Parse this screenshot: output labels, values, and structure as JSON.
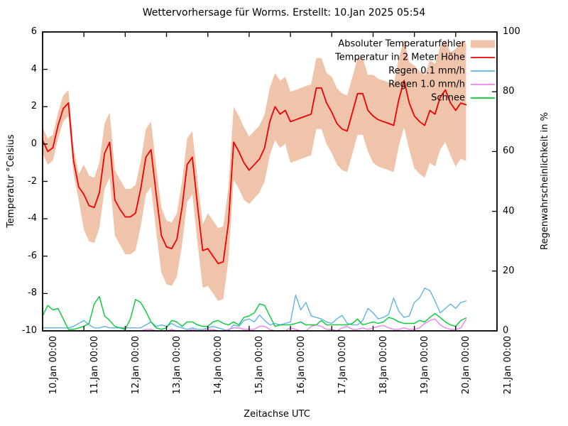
{
  "title": "Wettervorhersage für Worms. Erstellt: 10.Jan 2025 05:54",
  "axes": {
    "x_label": "Zeitachse UTC",
    "y_left_label": "Temperatur °Celsius",
    "y_right_label": "Regenwahrscheinlichkeit in %",
    "x_ticks": [
      "10.Jan 00:00",
      "11.Jan 00:00",
      "12.Jan 00:00",
      "13.Jan 00:00",
      "14.Jan 00:00",
      "15.Jan 00:00",
      "16.Jan 00:00",
      "17.Jan 00:00",
      "18.Jan 00:00",
      "19.Jan 00:00",
      "20.Jan 00:00",
      "21.Jan 00:00"
    ],
    "x_tick_positions_days": [
      0,
      1,
      2,
      3,
      4,
      5,
      6,
      7,
      8,
      9,
      10,
      11
    ],
    "y_left_ticks": [
      -10,
      -8,
      -6,
      -4,
      -2,
      0,
      2,
      4,
      6
    ],
    "y_right_ticks": [
      0,
      20,
      40,
      60,
      80,
      100
    ],
    "y_left_range": [
      -10,
      6
    ],
    "y_right_range": [
      0,
      100
    ],
    "x_range_days": [
      0,
      11
    ],
    "grid": "off"
  },
  "legend": {
    "position": "top-right-inside",
    "entries": [
      {
        "label": "Absoluter Temperaturfehler",
        "type": "band",
        "color": "#f0c4ab"
      },
      {
        "label": "Temperatur in 2 Meter Höhe",
        "type": "line",
        "color": "#ee0000"
      },
      {
        "label": "Regen 0.1 mm/h",
        "type": "line",
        "color": "#62b2e4"
      },
      {
        "label": "Regen 1.0 mm/h",
        "type": "line",
        "color": "#ee82ee"
      },
      {
        "label": "Schnee",
        "type": "line",
        "color": "#00cc33"
      }
    ]
  },
  "chart_data": {
    "type": "line",
    "title": "Wettervorhersage für Worms. Erstellt: 10.Jan 2025 05:54",
    "xlabel": "Zeitachse UTC",
    "ylabel_left": "Temperatur °Celsius",
    "ylabel_right": "Regenwahrscheinlichkeit in %",
    "x_unit": "days since 10.Jan 2025 00:00 UTC, 3-hour steps",
    "x": [
      0,
      0.125,
      0.25,
      0.375,
      0.5,
      0.625,
      0.75,
      0.875,
      1,
      1.125,
      1.25,
      1.375,
      1.5,
      1.625,
      1.75,
      1.875,
      2,
      2.125,
      2.25,
      2.375,
      2.5,
      2.625,
      2.75,
      2.875,
      3,
      3.125,
      3.25,
      3.375,
      3.5,
      3.625,
      3.75,
      3.875,
      4,
      4.125,
      4.25,
      4.375,
      4.5,
      4.625,
      4.75,
      4.875,
      5,
      5.125,
      5.25,
      5.375,
      5.5,
      5.625,
      5.75,
      5.875,
      6,
      6.125,
      6.25,
      6.375,
      6.5,
      6.625,
      6.75,
      6.875,
      7,
      7.125,
      7.25,
      7.375,
      7.5,
      7.625,
      7.75,
      7.875,
      8,
      8.125,
      8.25,
      8.375,
      8.5,
      8.625,
      8.75,
      8.875,
      9,
      9.125,
      9.25,
      9.375,
      9.5,
      9.625,
      9.75,
      9.875,
      10,
      10.125,
      10.25
    ],
    "series": [
      {
        "name": "Temperatur in 2 Meter Höhe",
        "axis": "left",
        "unit": "°C",
        "color": "#ee0000",
        "values": [
          0.2,
          -0.4,
          -0.2,
          1,
          1.9,
          2.2,
          -0.9,
          -2.3,
          -2.7,
          -3.3,
          -3.4,
          -2.6,
          -0.5,
          0.1,
          -3,
          -3.5,
          -3.9,
          -3.9,
          -3.7,
          -2.4,
          -0.7,
          -0.3,
          -2.7,
          -4.9,
          -5.5,
          -5.6,
          -5.1,
          -3.4,
          -1.1,
          -0.7,
          -3.3,
          -5.7,
          -5.6,
          -6,
          -6.4,
          -6.3,
          -4.2,
          0.1,
          -0.4,
          -1,
          -1.4,
          -1.1,
          -0.8,
          -0.2,
          1.2,
          2,
          1.6,
          1.8,
          1.2,
          1.3,
          1.4,
          1.5,
          1.6,
          3,
          3,
          2.2,
          1.7,
          1.1,
          0.8,
          0.7,
          1.7,
          2.7,
          2.7,
          1.8,
          1.5,
          1.3,
          1.2,
          1.1,
          1,
          2.4,
          3.4,
          2.2,
          1.5,
          1.2,
          1,
          1.8,
          1.6,
          2.5,
          2.9,
          2.2,
          1.8,
          2.2,
          2.1
        ]
      },
      {
        "name": "Absoluter Temperaturfehler (obere Grenze)",
        "axis": "left",
        "unit": "°C",
        "color": "#f0c4ab",
        "values": [
          0.9,
          0.3,
          0.5,
          1.7,
          2.6,
          2.9,
          -0.2,
          -1.6,
          -1.1,
          -1.7,
          -1.8,
          -1,
          1.1,
          1.7,
          -1.4,
          -1.9,
          -2.4,
          -2.4,
          -2.2,
          -0.9,
          0.8,
          1.2,
          -1.2,
          -3.4,
          -4.1,
          -4.2,
          -3.7,
          -2,
          0.3,
          0.7,
          -1.9,
          -4.3,
          -3.7,
          -4.1,
          -4.5,
          -4.4,
          -2.3,
          2,
          1.5,
          0.9,
          0.4,
          0.7,
          1,
          1.6,
          3,
          3.8,
          3.4,
          3.6,
          2.8,
          2.9,
          3,
          3.1,
          3.2,
          4.6,
          4.6,
          3.8,
          3.6,
          3,
          2.7,
          2.6,
          3.6,
          4.6,
          4.6,
          3.7,
          3.7,
          3.5,
          3.4,
          3.3,
          3.2,
          4.6,
          5.6,
          4.4,
          4.2,
          3.9,
          3.7,
          4.5,
          4.3,
          5.2,
          5.6,
          4.9,
          5.1,
          5.5,
          5.4
        ]
      },
      {
        "name": "Absoluter Temperaturfehler (untere Grenze)",
        "axis": "left",
        "unit": "°C",
        "color": "#f0c4ab",
        "values": [
          -0.5,
          -1.1,
          -0.9,
          0.3,
          1.2,
          1.5,
          -1.6,
          -3,
          -4.6,
          -5.2,
          -5.3,
          -4.5,
          -2.4,
          -1.8,
          -4.9,
          -5.4,
          -5.9,
          -5.9,
          -5.7,
          -4.4,
          -2.7,
          -2.3,
          -4.7,
          -6.9,
          -7.5,
          -7.6,
          -7.1,
          -5.4,
          -3.1,
          -2.7,
          -5.3,
          -7.7,
          -7.6,
          -8,
          -8.4,
          -8.3,
          -6.2,
          -1.9,
          -2.4,
          -3,
          -3.2,
          -2.9,
          -2.6,
          -2,
          -0.6,
          0.2,
          -0.2,
          0,
          -1,
          -0.9,
          -0.8,
          -0.7,
          -0.6,
          0.8,
          0.8,
          0,
          -0.5,
          -1.1,
          -1.4,
          -1.5,
          -0.5,
          0.5,
          0.5,
          -0.4,
          -1,
          -1.2,
          -1.3,
          -1.4,
          -1.5,
          -0.1,
          0.9,
          -0.3,
          -1.3,
          -1.6,
          -1.8,
          -1,
          -1.2,
          -0.3,
          0.1,
          -0.6,
          -1.2,
          -0.8,
          -0.9
        ]
      },
      {
        "name": "Regen 0.1 mm/h",
        "axis": "right",
        "unit": "%",
        "color": "#62b2e4",
        "values": [
          1,
          1,
          1,
          1,
          1,
          1,
          1.5,
          2.5,
          3.5,
          2,
          1,
          1,
          1.5,
          1,
          1,
          1,
          1,
          1,
          1,
          1,
          2,
          3,
          1.5,
          2,
          1.5,
          2.5,
          1.5,
          1,
          0.5,
          1,
          0.5,
          0.5,
          1,
          1.5,
          1,
          0.5,
          0,
          2,
          1.5,
          3.5,
          4,
          3,
          5.3,
          3.5,
          2,
          2.5,
          2,
          2.5,
          3,
          12,
          7,
          9.5,
          5,
          4.5,
          4,
          3,
          2.5,
          4,
          5.2,
          2.5,
          2,
          2,
          3.5,
          7.5,
          6,
          4,
          4.5,
          5.5,
          11,
          6.5,
          4.5,
          5,
          9.5,
          11,
          14.3,
          13.5,
          10,
          6,
          7.5,
          9,
          7.5,
          9.5,
          10
        ]
      },
      {
        "name": "Regen 1.0 mm/h",
        "axis": "right",
        "unit": "%",
        "color": "#ee82ee",
        "values": [
          0,
          0,
          0,
          0,
          0,
          0,
          0,
          0,
          0,
          0,
          0,
          0,
          0,
          0,
          0,
          0,
          0,
          0,
          0,
          0,
          0.5,
          0.5,
          0,
          0,
          0,
          0.5,
          0,
          0,
          0,
          0.5,
          0,
          0,
          0.5,
          0.5,
          0,
          0,
          0.5,
          1,
          1,
          0.5,
          0.5,
          0.5,
          1.5,
          1.5,
          0.5,
          0,
          0,
          0,
          1,
          0.5,
          0,
          0,
          1.5,
          2,
          1.5,
          0.5,
          0.5,
          0,
          1,
          1.5,
          0.5,
          0.5,
          1,
          0.5,
          1,
          1.5,
          1.8,
          1,
          0.5,
          0.5,
          1,
          0.5,
          0.5,
          1,
          2.5,
          3.5,
          4,
          2,
          1,
          0.5,
          0.5,
          1,
          3.8
        ]
      },
      {
        "name": "Schnee",
        "axis": "right",
        "unit": "%",
        "color": "#00cc33",
        "values": [
          5,
          8.5,
          7,
          7.5,
          4,
          0.5,
          0.5,
          1,
          1.5,
          2.5,
          9,
          11.5,
          5,
          3.5,
          1.5,
          1,
          0.5,
          4,
          10.5,
          9.5,
          6.5,
          3,
          1,
          0.5,
          1,
          3.5,
          3,
          1.5,
          3,
          3,
          2,
          1.5,
          1.5,
          3,
          3.5,
          2.5,
          2,
          3,
          2,
          4.5,
          5,
          6,
          9,
          8.5,
          5,
          1.5,
          2,
          2,
          2,
          2.5,
          3,
          2,
          2,
          2,
          3.5,
          2,
          2,
          2,
          2,
          2,
          2.5,
          4,
          2,
          2.5,
          3,
          2.5,
          3,
          4.5,
          4,
          3,
          2.5,
          2.5,
          2.5,
          3.5,
          3,
          4.5,
          5.8,
          4.5,
          3,
          2,
          1.5,
          3.5,
          4.3
        ]
      }
    ]
  }
}
